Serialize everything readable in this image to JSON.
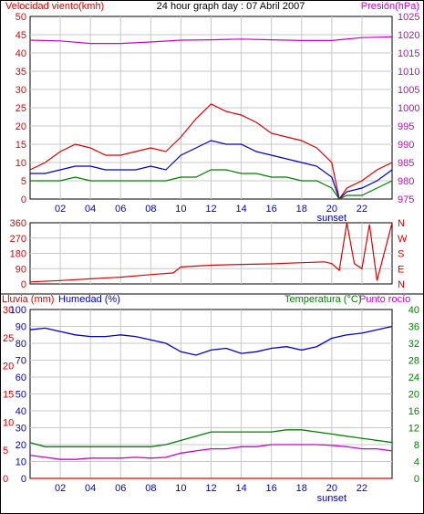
{
  "chart_data": [
    {
      "type": "line",
      "title": "24 hour graph day : 07 Abril 2007",
      "left_axis_label": "Velocidad viento(kmh)",
      "right_axis_label": "Presión(hPa)",
      "x_ticks": [
        "02",
        "04",
        "06",
        "08",
        "10",
        "12",
        "14",
        "16",
        "18",
        "20",
        "22"
      ],
      "x_extra_label": "sunset",
      "left_ticks": [
        0,
        5,
        10,
        15,
        20,
        25,
        30,
        35,
        40,
        45,
        50
      ],
      "right_ticks": [
        975,
        980,
        985,
        990,
        995,
        1000,
        1005,
        1010,
        1015,
        1020,
        1025
      ],
      "xlim": [
        0,
        24
      ],
      "ylim_left": [
        0,
        50
      ],
      "ylim_right": [
        975,
        1025
      ],
      "grid": true,
      "colors": {
        "gust": "#e00000",
        "wind": "#0000cc",
        "base": "#008000",
        "pressure": "#cc00cc"
      },
      "series": [
        {
          "key": "gust",
          "color": "#e00000",
          "x": [
            0,
            1,
            2,
            3,
            4,
            5,
            6,
            7,
            8,
            9,
            10,
            11,
            12,
            13,
            14,
            15,
            16,
            17,
            18,
            19,
            20,
            20.5,
            21,
            22,
            23,
            24
          ],
          "values": [
            8,
            10,
            13,
            15,
            14,
            12,
            12,
            13,
            14,
            13,
            17,
            22,
            26,
            24,
            23,
            21,
            18,
            17,
            16,
            14,
            10,
            0,
            3,
            5,
            8,
            10
          ]
        },
        {
          "key": "wind",
          "color": "#0000cc",
          "x": [
            0,
            1,
            2,
            3,
            4,
            5,
            6,
            7,
            8,
            9,
            10,
            11,
            12,
            13,
            14,
            15,
            16,
            17,
            18,
            19,
            20,
            20.5,
            21,
            22,
            23,
            24
          ],
          "values": [
            7,
            7,
            8,
            9,
            9,
            8,
            8,
            8,
            9,
            8,
            12,
            14,
            16,
            15,
            15,
            13,
            12,
            11,
            10,
            9,
            6,
            0,
            2,
            3,
            5,
            8
          ]
        },
        {
          "key": "base",
          "color": "#008000",
          "x": [
            0,
            1,
            2,
            3,
            4,
            5,
            6,
            7,
            8,
            9,
            10,
            11,
            12,
            13,
            14,
            15,
            16,
            17,
            18,
            19,
            20,
            20.5,
            21,
            22,
            23,
            24
          ],
          "values": [
            5,
            5,
            5,
            6,
            5,
            5,
            5,
            5,
            5,
            5,
            6,
            6,
            8,
            8,
            7,
            7,
            6,
            6,
            5,
            5,
            3,
            0,
            1,
            1,
            3,
            5
          ]
        },
        {
          "key": "pressure",
          "axis": "right",
          "color": "#cc00cc",
          "x": [
            0,
            2,
            4,
            6,
            8,
            10,
            12,
            14,
            16,
            18,
            20,
            22,
            24
          ],
          "values": [
            1018.5,
            1018.3,
            1017.6,
            1017.6,
            1018,
            1018.5,
            1018.6,
            1018.8,
            1018.6,
            1018.4,
            1018.4,
            1019.2,
            1019.4
          ]
        }
      ]
    },
    {
      "type": "line",
      "left_ticks": [
        0,
        90,
        180,
        270,
        360
      ],
      "right_labels": [
        "N",
        "W",
        "S",
        "E",
        "N"
      ],
      "ylim": [
        0,
        360
      ],
      "xlim": [
        0,
        24
      ],
      "grid": true,
      "series": [
        {
          "key": "direction",
          "color": "#e00000",
          "x": [
            0,
            2,
            4,
            6,
            8,
            9.5,
            10,
            12,
            14,
            16,
            18,
            19.5,
            20,
            20.5,
            21,
            21.5,
            22,
            22.5,
            23,
            24
          ],
          "values": [
            12,
            20,
            30,
            40,
            55,
            65,
            100,
            110,
            115,
            118,
            125,
            130,
            120,
            80,
            360,
            120,
            90,
            350,
            20,
            360
          ]
        }
      ]
    },
    {
      "type": "line",
      "labels": [
        "Lluvia (mm)",
        "Humedad (%)",
        "Temperatura (°C)",
        "Punto rocío"
      ],
      "rain_ticks": [
        0,
        5,
        10,
        15,
        20,
        25,
        30
      ],
      "humidity_ticks": [
        0,
        10,
        20,
        30,
        40,
        50,
        60,
        70,
        80,
        90,
        100
      ],
      "temp_ticks": [
        0,
        4,
        8,
        12,
        16,
        20,
        24,
        28,
        32,
        36,
        40
      ],
      "x_ticks": [
        "02",
        "04",
        "06",
        "08",
        "10",
        "12",
        "14",
        "16",
        "18",
        "20",
        "22"
      ],
      "x_extra_label": "sunset",
      "xlim": [
        0,
        24
      ],
      "grid": true,
      "series": [
        {
          "key": "rain",
          "color": "#e00000",
          "x": [
            0,
            24
          ],
          "values": [
            0,
            0
          ]
        },
        {
          "key": "humidity",
          "color": "#0000cc",
          "x": [
            0,
            1,
            2,
            3,
            4,
            5,
            6,
            7,
            8,
            9,
            10,
            11,
            12,
            13,
            14,
            15,
            16,
            17,
            18,
            19,
            20,
            21,
            22,
            23,
            24
          ],
          "values": [
            88,
            89,
            87,
            85,
            84,
            84,
            85,
            84,
            82,
            80,
            75,
            73,
            76,
            77,
            74,
            75,
            77,
            78,
            76,
            78,
            83,
            85,
            86,
            88,
            90
          ]
        },
        {
          "key": "temperature",
          "color": "#008000",
          "x": [
            0,
            1,
            2,
            3,
            4,
            5,
            6,
            7,
            8,
            9,
            10,
            11,
            12,
            13,
            14,
            15,
            16,
            17,
            18,
            19,
            20,
            21,
            22,
            23,
            24
          ],
          "values": [
            8.5,
            7.5,
            7.5,
            7.5,
            7.5,
            7.5,
            7.5,
            7.5,
            7.5,
            8,
            9,
            10,
            11,
            11,
            11,
            11,
            11,
            11.5,
            11.5,
            11,
            10.5,
            10,
            9.5,
            9,
            8.5
          ]
        },
        {
          "key": "dewpoint",
          "color": "#cc00cc",
          "x": [
            0,
            1,
            2,
            3,
            4,
            5,
            6,
            7,
            8,
            9,
            10,
            11,
            12,
            13,
            14,
            15,
            16,
            17,
            18,
            19,
            20,
            21,
            22,
            23,
            24
          ],
          "values": [
            5.5,
            5,
            4.5,
            4.5,
            4.8,
            4.8,
            4.8,
            5,
            4.8,
            5,
            6,
            6.5,
            7,
            7,
            7.5,
            7.5,
            8,
            8,
            8,
            8,
            7.8,
            7.5,
            7,
            7,
            6.5
          ]
        }
      ]
    }
  ]
}
